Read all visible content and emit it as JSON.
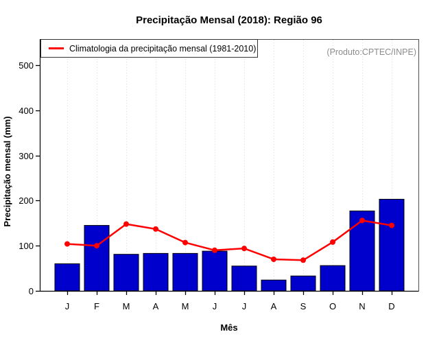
{
  "chart_data": {
    "type": "bar",
    "title": "Precipitação Mensal (2018): Região 96",
    "xlabel": "Mês",
    "ylabel": "Precipitação mensal (mm)",
    "annotation": "(Produto:CPTEC/INPE)",
    "legend_label": "Climatologia da precipitação mensal (1981-2010)",
    "legend_position": "top-left",
    "categories": [
      "J",
      "F",
      "M",
      "A",
      "M",
      "J",
      "J",
      "A",
      "S",
      "O",
      "N",
      "D"
    ],
    "series": [
      {
        "name": "Precipitação mensal 2018",
        "type": "bar",
        "values": [
          60,
          145,
          81,
          83,
          83,
          88,
          55,
          24,
          33,
          56,
          177,
          203
        ]
      },
      {
        "name": "Climatologia da precipitação mensal (1981-2010)",
        "type": "line",
        "values": [
          104,
          100,
          148,
          137,
          107,
          90,
          94,
          70,
          68,
          108,
          156,
          145
        ]
      }
    ],
    "ylim": [
      0,
      500
    ],
    "yticks": [
      0,
      100,
      200,
      300,
      400,
      500
    ],
    "grid": "vertical-dotted"
  },
  "colors": {
    "bar_fill": "#0000cd",
    "bar_stroke": "#000000",
    "line": "#ff0000",
    "grid": "#d9d9d9",
    "box": "#4d4d4d",
    "axis": "#000000",
    "tick_label": "#000000",
    "annotation_text": "#8c8c8c"
  }
}
